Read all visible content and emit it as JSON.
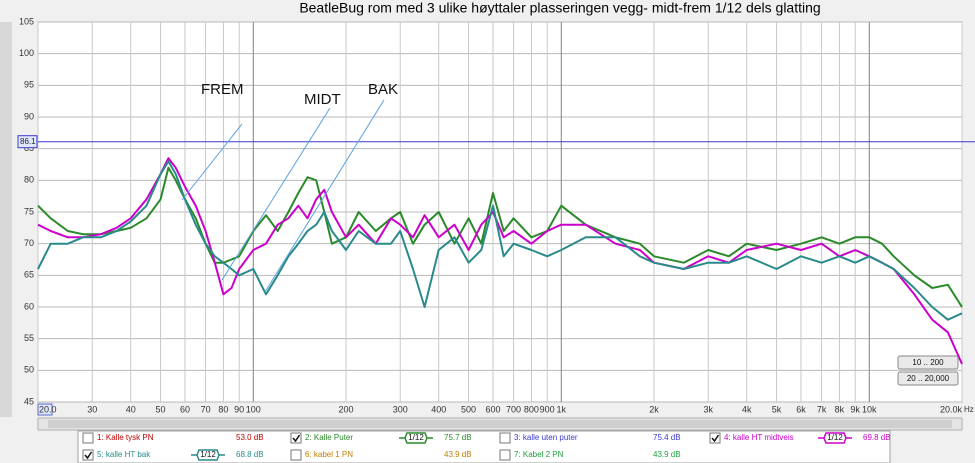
{
  "chart_data": {
    "type": "line",
    "title": "BeatleBug  rom med 3 ulike høyttaler plasseringen vegg- midt-frem 1/12 dels glatting",
    "log_x": true,
    "grid": true,
    "x_unit": "Hz",
    "xlim": [
      20,
      20000
    ],
    "ylim": [
      45,
      105
    ],
    "yticks": [
      45,
      50,
      55,
      60,
      65,
      70,
      75,
      80,
      85,
      90,
      95,
      100,
      105
    ],
    "xticks": [
      {
        "value": 20,
        "label": "20.0"
      },
      30,
      40,
      50,
      60,
      70,
      80,
      90,
      100,
      200,
      300,
      400,
      500,
      600,
      700,
      800,
      900,
      {
        "value": 1000,
        "label": "1k"
      },
      {
        "value": 2000,
        "label": "2k"
      },
      {
        "value": 3000,
        "label": "3k"
      },
      {
        "value": 4000,
        "label": "4k"
      },
      {
        "value": 5000,
        "label": "5k"
      },
      {
        "value": 6000,
        "label": "6k"
      },
      {
        "value": 7000,
        "label": "7k"
      },
      {
        "value": 8000,
        "label": "8k"
      },
      {
        "value": 9000,
        "label": "9k"
      },
      {
        "value": 10000,
        "label": "10k"
      },
      {
        "value": 20000,
        "label": "20.0k"
      }
    ],
    "cursor": 86.1,
    "x": [
      20,
      22,
      25,
      28,
      32,
      36,
      40,
      45,
      50,
      53,
      56,
      60,
      65,
      70,
      75,
      80,
      85,
      90,
      100,
      110,
      120,
      130,
      140,
      150,
      160,
      170,
      180,
      200,
      220,
      250,
      280,
      300,
      330,
      360,
      400,
      450,
      500,
      550,
      600,
      650,
      700,
      800,
      900,
      1000,
      1200,
      1500,
      1800,
      2000,
      2500,
      3000,
      3500,
      4000,
      5000,
      6000,
      7000,
      8000,
      9000,
      10000,
      11000,
      12000,
      14000,
      16000,
      18000,
      20000
    ],
    "series": [
      {
        "name": "1: Kalle tysk PN",
        "level": "53.0 dB",
        "checked": false,
        "color": "#c00000"
      },
      {
        "name": "2: Kalle Puter",
        "level": "75.7 dB",
        "checked": true,
        "smoothing": "1/12",
        "color": "#2a8a2a",
        "values": [
          76,
          74,
          72,
          71.5,
          71.5,
          72,
          72.5,
          74,
          77,
          82,
          80,
          77,
          74,
          70,
          67,
          67,
          67.5,
          68,
          72,
          74.5,
          72,
          75,
          78,
          80.5,
          80,
          75,
          70,
          71,
          75,
          72,
          74,
          75,
          70,
          73,
          75,
          70,
          74,
          70,
          78,
          72,
          74,
          71,
          72,
          76,
          73,
          71,
          70,
          68,
          67,
          69,
          68,
          70,
          69,
          70,
          71,
          70,
          71,
          71,
          70,
          68,
          65,
          63,
          63.5,
          60
        ]
      },
      {
        "name": "3: kalle uten puter",
        "level": "75.4 dB",
        "checked": false,
        "color": "#3a3ad0"
      },
      {
        "name": "4: kalle HT midtveis",
        "level": "69.8 dB",
        "checked": true,
        "smoothing": "1/12",
        "color": "#cc00cc",
        "values": [
          73,
          72,
          71,
          71,
          71.5,
          72.5,
          74,
          77,
          81,
          83.5,
          82,
          79,
          76,
          72,
          67,
          62,
          63,
          66,
          69,
          70,
          73,
          74,
          76,
          74,
          77,
          78.5,
          75,
          71,
          73,
          70,
          74,
          73,
          71,
          74.5,
          71,
          73,
          69,
          73,
          75,
          71,
          72,
          70,
          72,
          73,
          73,
          70,
          69,
          67,
          66,
          68,
          67,
          69,
          70,
          69,
          70,
          68,
          69,
          68,
          67,
          66,
          62,
          58,
          56,
          51
        ]
      },
      {
        "name": "5: kalle HT bak",
        "level": "68.8 dB",
        "checked": true,
        "smoothing": "1/12",
        "color": "#2a8a8a",
        "values": [
          66,
          70,
          70,
          71,
          71,
          72,
          73.5,
          76,
          81,
          83,
          81,
          77,
          73,
          70,
          68,
          67,
          66,
          65,
          66,
          62,
          65,
          68,
          70,
          72,
          73,
          75,
          72,
          69,
          72,
          70,
          70,
          72,
          66,
          60,
          69,
          71,
          67,
          69,
          76,
          68,
          70,
          69,
          68,
          69,
          71,
          71,
          68,
          67,
          66,
          67,
          67,
          68,
          66,
          68,
          67,
          68,
          67,
          68,
          67,
          66,
          63,
          60,
          58,
          59
        ]
      },
      {
        "name": "6: kabel 1 PN",
        "level": "43.9 dB",
        "checked": false,
        "color": "#c08000"
      },
      {
        "name": "7: Kabel 2 PN",
        "level": "43.9 dB",
        "checked": false,
        "color": "#20a040"
      }
    ],
    "annotations": [
      "FREM",
      "MIDT",
      "BAK"
    ],
    "buttons": [
      "10 .. 200",
      "20 .. 20,000"
    ]
  }
}
